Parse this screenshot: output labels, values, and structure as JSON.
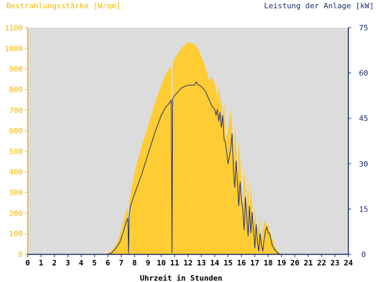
{
  "chart_data": {
    "type": "area",
    "title_left": "Bestrahlungsstärke [W/qm]",
    "title_right": "Leistung der Anlage [kW]",
    "xlabel": "Uhrzeit in Stunden",
    "xlim": [
      0,
      24
    ],
    "x_ticks": [
      "0",
      "1",
      "2",
      "3",
      "4",
      "5",
      "6",
      "7",
      "8",
      "9",
      "10",
      "11",
      "12",
      "13",
      "14",
      "15",
      "16",
      "17",
      "18",
      "19",
      "20",
      "21",
      "22",
      "23",
      "24"
    ],
    "ylim_left": [
      0,
      1100
    ],
    "y_ticks_left": [
      "0",
      "100",
      "200",
      "300",
      "400",
      "500",
      "600",
      "700",
      "800",
      "900",
      "1000",
      "1100"
    ],
    "ylim_right": [
      0,
      75
    ],
    "y_ticks_right": [
      "0",
      "15",
      "30",
      "45",
      "60",
      "75"
    ],
    "colors": {
      "irradiance": "#ffcc33",
      "power": "#1f2f70",
      "plot_bg": "#dcdcdc",
      "left_axis": "#f6b800",
      "right_axis": "#1f2f70"
    },
    "series": [
      {
        "axis": "left",
        "kind": "area",
        "x": [
          0,
          5.8,
          6.0,
          6.2,
          6.5,
          6.8,
          7.0,
          7.2,
          7.4,
          7.5,
          7.55,
          7.6,
          7.8,
          8.0,
          8.5,
          9.0,
          9.5,
          10.0,
          10.3,
          10.6,
          10.75,
          10.8,
          10.85,
          11.0,
          11.5,
          12.0,
          12.5,
          12.8,
          13.0,
          13.3,
          13.6,
          13.8,
          14.0,
          14.1,
          14.2,
          14.3,
          14.4,
          14.5,
          14.6,
          14.7,
          14.8,
          15.0,
          15.2,
          15.3,
          15.4,
          15.5,
          15.6,
          15.7,
          15.8,
          15.9,
          16.0,
          16.1,
          16.2,
          16.3,
          16.4,
          16.5,
          16.6,
          16.7,
          16.8,
          16.9,
          17.0,
          17.1,
          17.2,
          17.3,
          17.4,
          17.5,
          17.6,
          17.7,
          17.8,
          17.9,
          18.0,
          18.1,
          18.2,
          18.3,
          18.4,
          18.5,
          18.7,
          18.9,
          19.0,
          24
        ],
        "values": [
          0,
          0,
          5,
          15,
          35,
          75,
          120,
          170,
          215,
          230,
          10,
          250,
          330,
          400,
          520,
          620,
          730,
          820,
          870,
          900,
          910,
          10,
          920,
          950,
          1000,
          1030,
          1020,
          990,
          960,
          910,
          840,
          860,
          830,
          790,
          760,
          830,
          720,
          780,
          650,
          740,
          560,
          600,
          700,
          610,
          400,
          620,
          540,
          340,
          550,
          470,
          330,
          200,
          420,
          330,
          210,
          380,
          160,
          350,
          230,
          40,
          240,
          130,
          80,
          180,
          100,
          60,
          120,
          150,
          170,
          140,
          140,
          120,
          100,
          80,
          60,
          40,
          15,
          5,
          0,
          0
        ]
      },
      {
        "axis": "right",
        "kind": "line",
        "x": [
          0,
          6.0,
          6.3,
          6.6,
          6.9,
          7.2,
          7.4,
          7.5,
          7.55,
          7.6,
          7.7,
          8.0,
          8.5,
          9.0,
          9.5,
          10.0,
          10.3,
          10.6,
          10.75,
          10.8,
          10.85,
          11.0,
          11.5,
          12.0,
          12.5,
          12.6,
          12.8,
          13.0,
          13.3,
          13.6,
          13.8,
          14.0,
          14.1,
          14.2,
          14.3,
          14.4,
          14.5,
          14.6,
          14.7,
          14.8,
          15.0,
          15.2,
          15.3,
          15.4,
          15.5,
          15.6,
          15.7,
          15.8,
          15.9,
          16.0,
          16.1,
          16.2,
          16.3,
          16.4,
          16.5,
          16.6,
          16.7,
          16.8,
          16.9,
          17.0,
          17.1,
          17.2,
          17.3,
          17.4,
          17.5,
          17.6,
          17.7,
          17.8,
          17.9,
          18.0,
          18.1,
          18.2,
          18.3,
          18.5,
          18.7,
          18.9,
          19.0,
          24
        ],
        "values": [
          0,
          0,
          0.5,
          2,
          4,
          8,
          11,
          12,
          0.3,
          13,
          16,
          20,
          26,
          33,
          40,
          46,
          48.5,
          50,
          51,
          0.5,
          51.5,
          52.5,
          55,
          56,
          56,
          57,
          56,
          55.5,
          54,
          51,
          49,
          48,
          46,
          48,
          44,
          47,
          42,
          46,
          38,
          37,
          30,
          35,
          40,
          28,
          22,
          31,
          24,
          16,
          24,
          18,
          15,
          8,
          19,
          12,
          6,
          16,
          7,
          14,
          8,
          2,
          10,
          4,
          1,
          7,
          3,
          1,
          5,
          8,
          9,
          7,
          7,
          5,
          3,
          1.5,
          0.5,
          0,
          0,
          0
        ]
      }
    ]
  }
}
